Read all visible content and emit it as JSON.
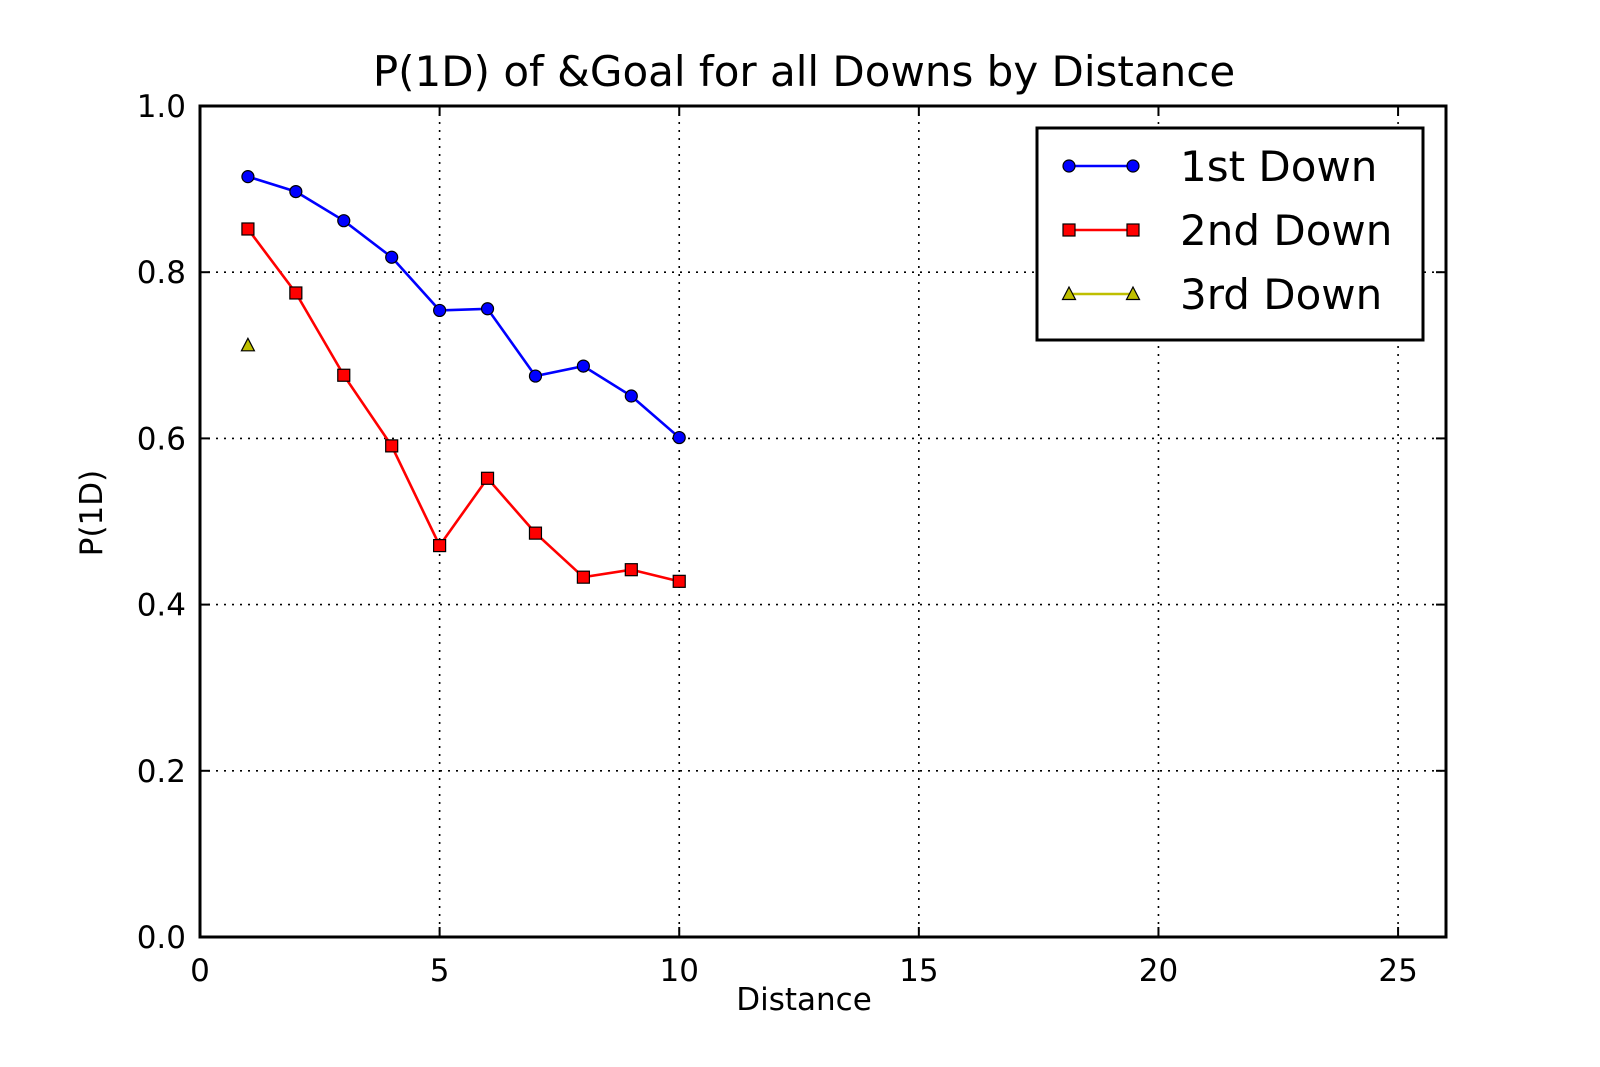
{
  "chart_data": {
    "type": "line",
    "title": "P(1D) of &Goal for all Downs by Distance",
    "xlabel": "Distance",
    "ylabel": "P(1D)",
    "xlim": [
      0,
      26
    ],
    "ylim": [
      0.0,
      1.0
    ],
    "xticks": [
      0,
      5,
      10,
      15,
      20,
      25
    ],
    "xtick_labels": [
      "0",
      "5",
      "10",
      "15",
      "20",
      "25"
    ],
    "yticks": [
      0.0,
      0.2,
      0.4,
      0.6,
      0.8,
      1.0
    ],
    "ytick_labels": [
      "0.0",
      "0.2",
      "0.4",
      "0.6",
      "0.8",
      "1.0"
    ],
    "grid": true,
    "legend_position": "top-right",
    "series": [
      {
        "name": "1st Down",
        "color": "#0000ff",
        "marker": "circle",
        "x": [
          1,
          2,
          3,
          4,
          5,
          6,
          7,
          8,
          9,
          10
        ],
        "y": [
          0.915,
          0.897,
          0.862,
          0.818,
          0.754,
          0.756,
          0.675,
          0.687,
          0.651,
          0.601
        ]
      },
      {
        "name": "2nd Down",
        "color": "#ff0000",
        "marker": "square",
        "x": [
          1,
          2,
          3,
          4,
          5,
          6,
          7,
          8,
          9,
          10
        ],
        "y": [
          0.852,
          0.775,
          0.676,
          0.591,
          0.471,
          0.552,
          0.486,
          0.433,
          0.442,
          0.428
        ]
      },
      {
        "name": "3rd Down",
        "color": "#bfbf00",
        "marker": "triangle",
        "x": [
          1
        ],
        "y": [
          0.712
        ]
      }
    ]
  }
}
